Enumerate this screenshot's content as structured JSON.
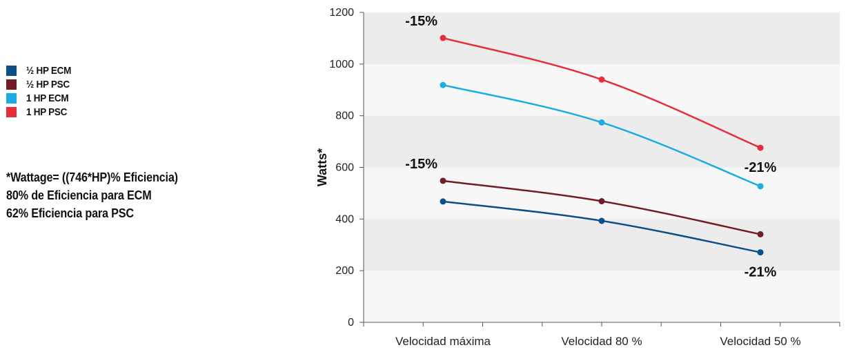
{
  "legend": [
    {
      "label": "½ HP ECM",
      "color": "#0d4f86"
    },
    {
      "label": "½ HP PSC",
      "color": "#6e1e24"
    },
    {
      "label": "1 HP ECM",
      "color": "#19ade2"
    },
    {
      "label": "1 HP PSC",
      "color": "#e52d3d"
    }
  ],
  "notes": [
    "*Wattage= ((746*HP)% Eficiencia)",
    "80% de Eficiencia para ECM",
    "62% Eficiencia para PSC"
  ],
  "chart_data": {
    "type": "line",
    "categories": [
      "Velocidad máxima",
      "Velocidad 80 %",
      "Velocidad 50 %"
    ],
    "ylabel": "Watts*",
    "ylim": [
      0,
      1200
    ],
    "yticks": [
      0,
      200,
      400,
      600,
      800,
      1000,
      1200
    ],
    "grid": "alternating horizontal bands",
    "series": [
      {
        "name": "½ HP ECM",
        "color": "#0d4f86",
        "values": [
          468,
          393,
          271
        ]
      },
      {
        "name": "½ HP PSC",
        "color": "#6e1e24",
        "values": [
          548,
          469,
          341
        ]
      },
      {
        "name": "1 HP ECM",
        "color": "#19ade2",
        "values": [
          919,
          774,
          527
        ]
      },
      {
        "name": "1 HP PSC",
        "color": "#e52d3d",
        "values": [
          1101,
          940,
          676
        ]
      }
    ],
    "annotations": [
      {
        "text": "-15%",
        "category": 0,
        "near_series": "1 HP PSC"
      },
      {
        "text": "-15%",
        "category": 0,
        "near_series": "½ HP PSC"
      },
      {
        "text": "-21%",
        "category": 2,
        "near_series": "1 HP ECM"
      },
      {
        "text": "-21%",
        "category": 2,
        "near_series": "½ HP ECM"
      }
    ]
  }
}
